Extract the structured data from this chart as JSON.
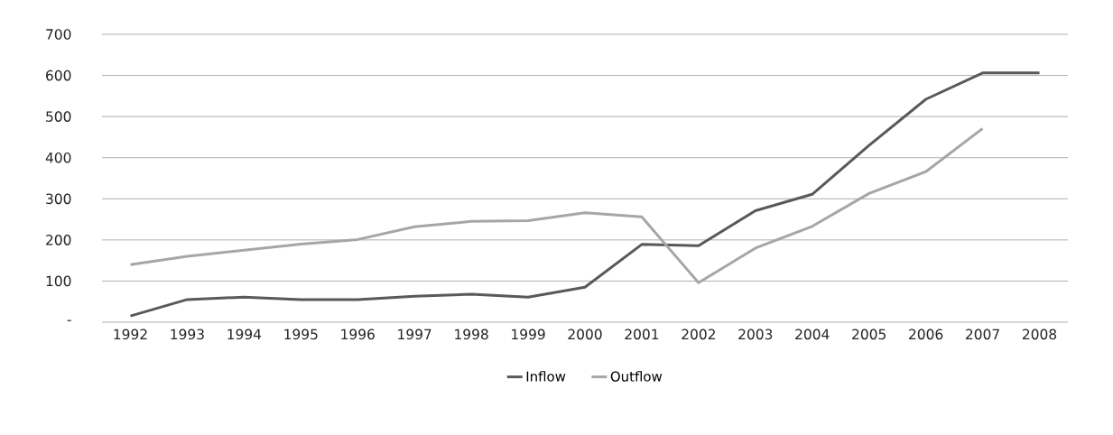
{
  "chart_data": {
    "type": "line",
    "categories": [
      "1992",
      "1993",
      "1994",
      "1995",
      "1996",
      "1997",
      "1998",
      "1999",
      "2000",
      "2001",
      "2002",
      "2003",
      "2004",
      "2005",
      "2006",
      "2007",
      "2008"
    ],
    "series": [
      {
        "name": "Inflow",
        "color": "#595959",
        "values": [
          15,
          55,
          61,
          55,
          55,
          63,
          68,
          61,
          85,
          189,
          186,
          271,
          311,
          430,
          542,
          606,
          606
        ]
      },
      {
        "name": "Outflow",
        "color": "#a6a6a6",
        "values": [
          140,
          160,
          175,
          190,
          201,
          232,
          245,
          247,
          266,
          256,
          96,
          180,
          233,
          313,
          366,
          471,
          null
        ]
      }
    ],
    "ylim": [
      0,
      700
    ],
    "yticks": [
      {
        "value": 0,
        "label": "-"
      },
      100,
      200,
      300,
      400,
      500,
      600,
      700
    ],
    "grid": "y",
    "legend": "bottom",
    "marker": "none",
    "line_style": "solid"
  }
}
